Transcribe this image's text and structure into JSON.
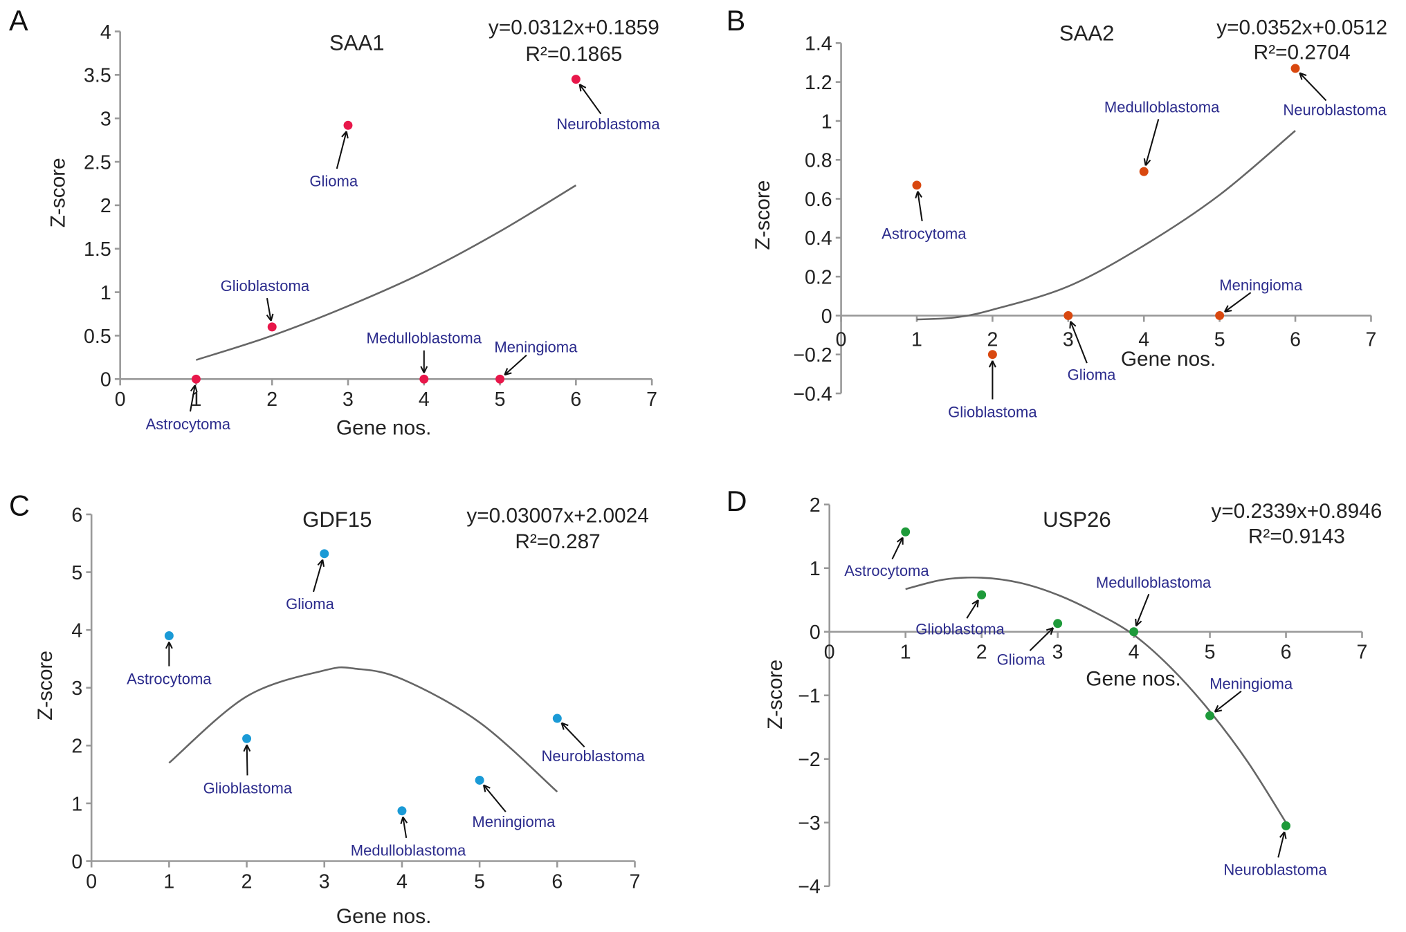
{
  "chart_data": [
    {
      "panel": "A",
      "type": "scatter",
      "title": "SAA1",
      "equation": "y=0.0312x+0.1859",
      "r2": "R²=0.1865",
      "xlabel": "Gene nos.",
      "ylabel": "Z-score",
      "xlim": [
        0,
        7
      ],
      "ylim": [
        0,
        4
      ],
      "x_ticks": [
        "0",
        "1",
        "2",
        "3",
        "4",
        "5",
        "6",
        "7"
      ],
      "y_ticks": [
        "0",
        "0.5",
        "1",
        "1.5",
        "2",
        "2.5",
        "3",
        "3.5",
        "4"
      ],
      "color": "#e8174a",
      "points": [
        {
          "x": 1,
          "y": 0,
          "label": "Astrocytoma"
        },
        {
          "x": 2,
          "y": 0.6,
          "label": "Glioblastoma"
        },
        {
          "x": 3,
          "y": 2.92,
          "label": "Glioma"
        },
        {
          "x": 4,
          "y": 0,
          "label": "Medulloblastoma"
        },
        {
          "x": 5,
          "y": 0,
          "label": "Meningioma"
        },
        {
          "x": 6,
          "y": 3.45,
          "label": "Neuroblastoma"
        }
      ],
      "trendline": {
        "x": [
          1,
          2,
          3,
          4,
          5,
          6
        ],
        "y": [
          0.22,
          0.5,
          0.84,
          1.23,
          1.7,
          2.23
        ]
      }
    },
    {
      "panel": "B",
      "type": "scatter",
      "title": "SAA2",
      "equation": "y=0.0352x+0.0512",
      "r2": "R²=0.2704",
      "xlabel": "Gene nos.",
      "ylabel": "Z-score",
      "xlim": [
        0,
        7
      ],
      "ylim": [
        -0.4,
        1.4
      ],
      "x_ticks": [
        "0",
        "1",
        "2",
        "3",
        "4",
        "5",
        "6",
        "7"
      ],
      "y_ticks": [
        "−0.4",
        "−0.2",
        "0",
        "0.2",
        "0.4",
        "0.6",
        "0.8",
        "1",
        "1.2",
        "1.4"
      ],
      "color": "#d9480f",
      "points": [
        {
          "x": 1,
          "y": 0.67,
          "label": "Astrocytoma"
        },
        {
          "x": 2,
          "y": -0.2,
          "label": "Glioblastoma"
        },
        {
          "x": 3,
          "y": 0,
          "label": "Glioma"
        },
        {
          "x": 4,
          "y": 0.74,
          "label": "Medulloblastoma"
        },
        {
          "x": 5,
          "y": 0,
          "label": "Meningioma"
        },
        {
          "x": 6,
          "y": 1.27,
          "label": "Neuroblastoma"
        }
      ],
      "trendline": {
        "x": [
          1,
          1.5,
          2,
          3,
          4,
          5,
          6
        ],
        "y": [
          -0.02,
          -0.01,
          0.03,
          0.15,
          0.36,
          0.62,
          0.95
        ]
      }
    },
    {
      "panel": "C",
      "type": "scatter",
      "title": "GDF15",
      "equation": "y=0.03007x+2.0024",
      "r2": "R²=0.287",
      "xlabel": "Gene nos.",
      "ylabel": "Z-score",
      "xlim": [
        0,
        7
      ],
      "ylim": [
        0,
        6
      ],
      "x_ticks": [
        "0",
        "1",
        "2",
        "3",
        "4",
        "5",
        "6",
        "7"
      ],
      "y_ticks": [
        "0",
        "1",
        "2",
        "3",
        "4",
        "5",
        "6"
      ],
      "color": "#1a9ad6",
      "points": [
        {
          "x": 1,
          "y": 3.9,
          "label": "Astrocytoma"
        },
        {
          "x": 2,
          "y": 2.12,
          "label": "Glioblastoma"
        },
        {
          "x": 3,
          "y": 5.32,
          "label": "Glioma"
        },
        {
          "x": 4,
          "y": 0.87,
          "label": "Medulloblastoma"
        },
        {
          "x": 5,
          "y": 1.4,
          "label": "Meningioma"
        },
        {
          "x": 6,
          "y": 2.47,
          "label": "Neuroblastoma"
        }
      ],
      "trendline": {
        "x": [
          1,
          2,
          3,
          3.4,
          4,
          5,
          6
        ],
        "y": [
          1.7,
          2.85,
          3.3,
          3.33,
          3.15,
          2.4,
          1.2
        ]
      }
    },
    {
      "panel": "D",
      "type": "scatter",
      "title": "USP26",
      "equation": "y=0.2339x+0.8946",
      "r2": "R²=0.9143",
      "xlabel": "Gene nos.",
      "ylabel": "Z-score",
      "xlim": [
        0,
        7
      ],
      "ylim": [
        -4,
        2
      ],
      "x_ticks": [
        "0",
        "1",
        "2",
        "3",
        "4",
        "5",
        "6",
        "7"
      ],
      "y_ticks": [
        "−4",
        "−3",
        "−2",
        "−1",
        "0",
        "1",
        "2"
      ],
      "color": "#1e9a3a",
      "points": [
        {
          "x": 1,
          "y": 1.57,
          "label": "Astrocytoma"
        },
        {
          "x": 2,
          "y": 0.58,
          "label": "Glioblastoma"
        },
        {
          "x": 3,
          "y": 0.13,
          "label": "Glioma"
        },
        {
          "x": 4,
          "y": 0,
          "label": "Medulloblastoma"
        },
        {
          "x": 5,
          "y": -1.32,
          "label": "Meningioma"
        },
        {
          "x": 6,
          "y": -3.05,
          "label": "Neuroblastoma"
        }
      ],
      "trendline": {
        "x": [
          1,
          1.5,
          2,
          2.5,
          3,
          3.5,
          4,
          4.5,
          5,
          5.5,
          6
        ],
        "y": [
          0.67,
          0.82,
          0.85,
          0.77,
          0.58,
          0.3,
          -0.05,
          -0.58,
          -1.25,
          -2.05,
          -3.0
        ]
      }
    }
  ]
}
